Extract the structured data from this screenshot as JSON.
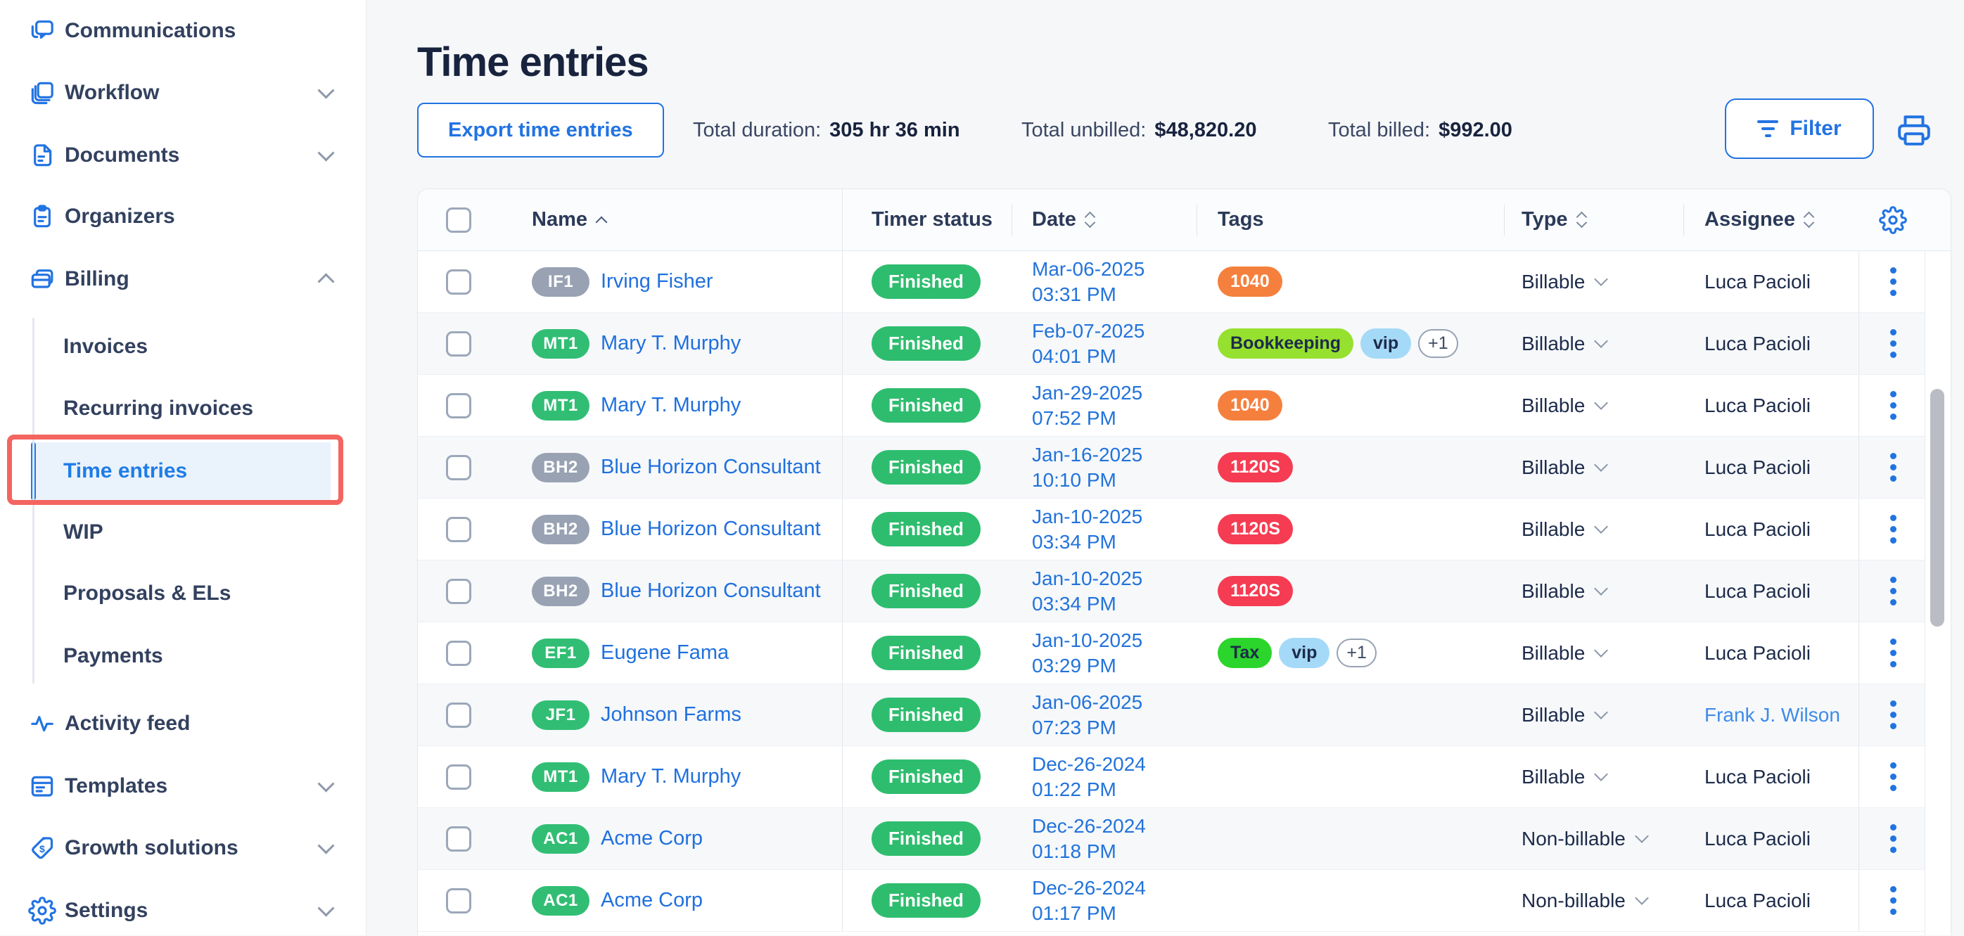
{
  "sidebar": {
    "items": [
      {
        "id": "communications",
        "label": "Communications",
        "icon": "chat-icon"
      },
      {
        "id": "workflow",
        "label": "Workflow",
        "icon": "workflow-icon",
        "chevron": "down"
      },
      {
        "id": "documents",
        "label": "Documents",
        "icon": "document-icon",
        "chevron": "down"
      },
      {
        "id": "organizers",
        "label": "Organizers",
        "icon": "clipboard-icon"
      },
      {
        "id": "billing",
        "label": "Billing",
        "icon": "billing-icon",
        "chevron": "up",
        "children": [
          {
            "id": "invoices",
            "label": "Invoices"
          },
          {
            "id": "recurring-invoices",
            "label": "Recurring invoices"
          },
          {
            "id": "time-entries",
            "label": "Time entries",
            "active": true,
            "annotated": true
          },
          {
            "id": "wip",
            "label": "WIP"
          },
          {
            "id": "proposals-els",
            "label": "Proposals & ELs"
          },
          {
            "id": "payments",
            "label": "Payments"
          }
        ]
      },
      {
        "id": "activity-feed",
        "label": "Activity feed",
        "icon": "activity-icon"
      },
      {
        "id": "templates",
        "label": "Templates",
        "icon": "templates-icon",
        "chevron": "down"
      },
      {
        "id": "growth-solutions",
        "label": "Growth solutions",
        "icon": "tag-dollar-icon",
        "chevron": "down"
      },
      {
        "id": "settings",
        "label": "Settings",
        "icon": "gear-icon",
        "chevron": "down"
      }
    ]
  },
  "header": {
    "title": "Time entries",
    "export_label": "Export time entries",
    "totals": [
      {
        "label": "Total duration:",
        "value": "305 hr 36 min"
      },
      {
        "label": "Total unbilled:",
        "value": "$48,820.20"
      },
      {
        "label": "Total billed:",
        "value": "$992.00"
      }
    ],
    "filter_label": "Filter"
  },
  "table": {
    "columns": {
      "name": "Name",
      "timer_status": "Timer status",
      "date": "Date",
      "tags": "Tags",
      "type": "Type",
      "assignee": "Assignee"
    },
    "rows": [
      {
        "chip": "IF1",
        "chip_color": "gray",
        "name": "Irving Fisher",
        "status": "Finished",
        "date": "Mar-06-2025",
        "time": "03:31 PM",
        "tags": [
          {
            "label": "1040",
            "style": "orange"
          }
        ],
        "type": "Billable",
        "assignee": "Luca Pacioli",
        "assignee_is_link": false
      },
      {
        "chip": "MT1",
        "chip_color": "green",
        "name": "Mary T. Murphy",
        "status": "Finished",
        "date": "Feb-07-2025",
        "time": "04:01 PM",
        "tags": [
          {
            "label": "Bookkeeping",
            "style": "lime"
          },
          {
            "label": "vip",
            "style": "sky"
          },
          {
            "label": "+1",
            "style": "outline"
          }
        ],
        "type": "Billable",
        "assignee": "Luca Pacioli",
        "assignee_is_link": false
      },
      {
        "chip": "MT1",
        "chip_color": "green",
        "name": "Mary T. Murphy",
        "status": "Finished",
        "date": "Jan-29-2025",
        "time": "07:52 PM",
        "tags": [
          {
            "label": "1040",
            "style": "orange"
          }
        ],
        "type": "Billable",
        "assignee": "Luca Pacioli",
        "assignee_is_link": false
      },
      {
        "chip": "BH2",
        "chip_color": "gray",
        "name": "Blue Horizon Consultant",
        "status": "Finished",
        "date": "Jan-16-2025",
        "time": "10:10 PM",
        "tags": [
          {
            "label": "1120S",
            "style": "red"
          }
        ],
        "type": "Billable",
        "assignee": "Luca Pacioli",
        "assignee_is_link": false
      },
      {
        "chip": "BH2",
        "chip_color": "gray",
        "name": "Blue Horizon Consultant",
        "status": "Finished",
        "date": "Jan-10-2025",
        "time": "03:34 PM",
        "tags": [
          {
            "label": "1120S",
            "style": "red"
          }
        ],
        "type": "Billable",
        "assignee": "Luca Pacioli",
        "assignee_is_link": false
      },
      {
        "chip": "BH2",
        "chip_color": "gray",
        "name": "Blue Horizon Consultant",
        "status": "Finished",
        "date": "Jan-10-2025",
        "time": "03:34 PM",
        "tags": [
          {
            "label": "1120S",
            "style": "red"
          }
        ],
        "type": "Billable",
        "assignee": "Luca Pacioli",
        "assignee_is_link": false
      },
      {
        "chip": "EF1",
        "chip_color": "green",
        "name": "Eugene Fama",
        "status": "Finished",
        "date": "Jan-10-2025",
        "time": "03:29 PM",
        "tags": [
          {
            "label": "Tax",
            "style": "green"
          },
          {
            "label": "vip",
            "style": "sky"
          },
          {
            "label": "+1",
            "style": "outline"
          }
        ],
        "type": "Billable",
        "assignee": "Luca Pacioli",
        "assignee_is_link": false
      },
      {
        "chip": "JF1",
        "chip_color": "green",
        "name": "Johnson Farms",
        "status": "Finished",
        "date": "Jan-06-2025",
        "time": "07:23 PM",
        "tags": [],
        "type": "Billable",
        "assignee": "Frank J. Wilson",
        "assignee_is_link": true
      },
      {
        "chip": "MT1",
        "chip_color": "green",
        "name": "Mary T. Murphy",
        "status": "Finished",
        "date": "Dec-26-2024",
        "time": "01:22 PM",
        "tags": [],
        "type": "Billable",
        "assignee": "Luca Pacioli",
        "assignee_is_link": false
      },
      {
        "chip": "AC1",
        "chip_color": "green",
        "name": "Acme Corp",
        "status": "Finished",
        "date": "Dec-26-2024",
        "time": "01:18 PM",
        "tags": [],
        "type": "Non-billable",
        "assignee": "Luca Pacioli",
        "assignee_is_link": false
      },
      {
        "chip": "AC1",
        "chip_color": "green",
        "name": "Acme Corp",
        "status": "Finished",
        "date": "Dec-26-2024",
        "time": "01:17 PM",
        "tags": [],
        "type": "Non-billable",
        "assignee": "Luca Pacioli",
        "assignee_is_link": false
      }
    ]
  },
  "colors": {
    "accent_blue": "#2273E2",
    "link_blue": "#2070DE",
    "assignee_link_blue": "#3E8BE8",
    "active_item_blue": "#1F7CE8",
    "finished_green": "#2EBD6E",
    "chip_gray": "#98A2B3",
    "chip_green": "#31BE74",
    "tag_orange": "#F5803D",
    "tag_lime": "#96E02F",
    "tag_sky": "#A5D9F8",
    "tag_green": "#2BD52B",
    "tag_red": "#F53C52",
    "annotation_red": "#F4655F"
  }
}
